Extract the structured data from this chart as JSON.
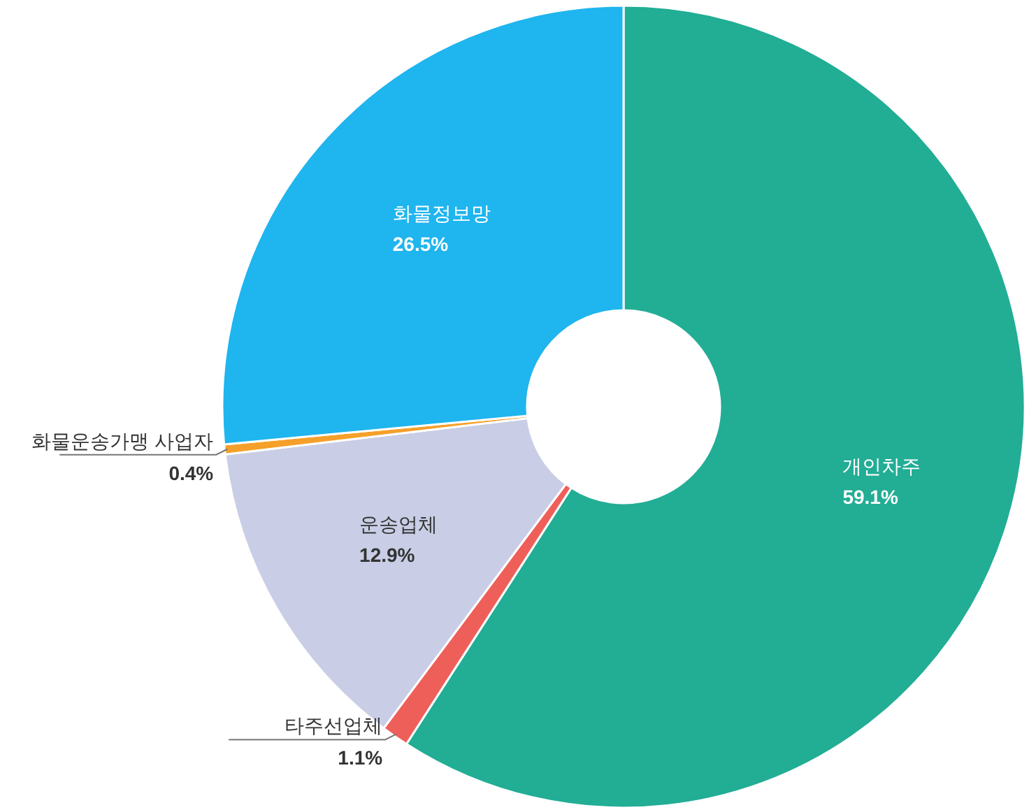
{
  "chart_data": {
    "type": "donut",
    "categories": [
      "개인차주",
      "타주선업체",
      "운송업체",
      "화물운송가맹 사업자",
      "화물정보망"
    ],
    "values": [
      59.1,
      1.1,
      12.9,
      0.4,
      26.5
    ],
    "value_labels": [
      "59.1%",
      "1.1%",
      "12.9%",
      "0.4%",
      "26.5%"
    ],
    "colors": [
      "#22ad95",
      "#ef5f5a",
      "#c9cee6",
      "#f5a02a",
      "#1fb5ee"
    ]
  }
}
